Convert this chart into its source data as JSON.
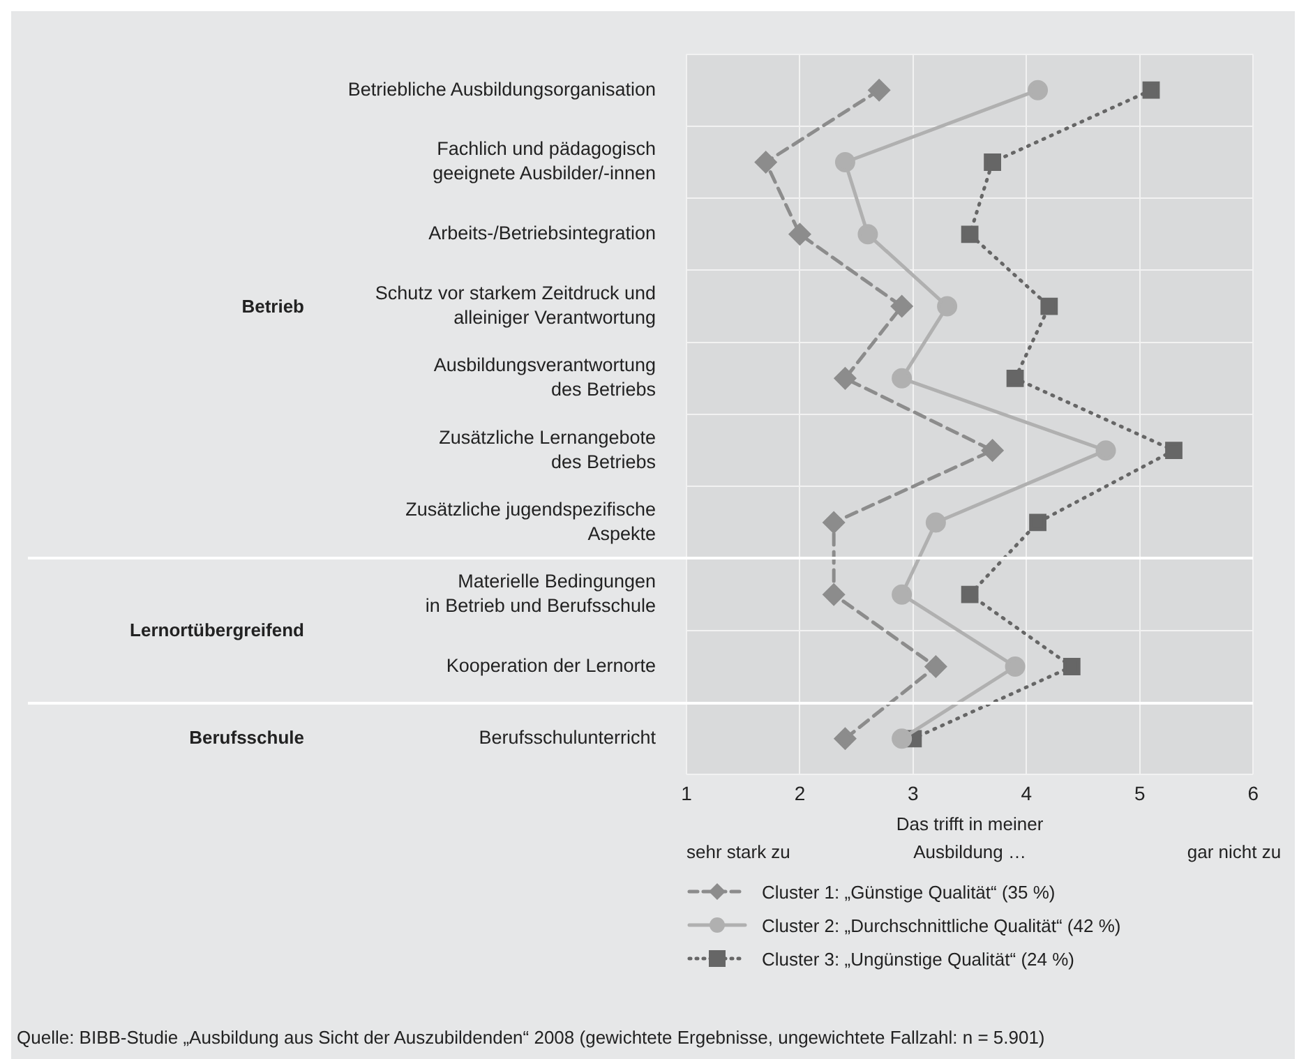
{
  "chart_data": {
    "type": "line",
    "categories": [
      "Betriebliche Ausbildungsorganisation",
      "Fachlich und pädagogisch\ngeeignete Ausbilder/-innen",
      "Arbeits-/Betriebsintegration",
      "Schutz vor starkem Zeitdruck und\nalleiniger Verantwortung",
      "Ausbildungsverantwortung\ndes Betriebs",
      "Zusätzliche Lernangebote\ndes Betriebs",
      "Zusätzliche jugendspezifische\nAspekte",
      "Materielle Bedingungen\nin Betrieb und Berufsschule",
      "Kooperation der Lernorte",
      "Berufsschulunterricht"
    ],
    "orientation": "horizontal",
    "series": [
      {
        "name": "Cluster 1: „Günstige Qualität“ (35 %)",
        "color": "#8c8c8c",
        "marker": "diamond",
        "line_style": "dashed",
        "values": [
          2.7,
          1.7,
          2.0,
          2.9,
          2.4,
          3.7,
          2.3,
          2.3,
          3.2,
          2.4
        ]
      },
      {
        "name": "Cluster 2: „Durchschnittliche Qualität“ (42 %)",
        "color": "#b0b0b0",
        "marker": "circle",
        "line_style": "solid",
        "values": [
          4.1,
          2.4,
          2.6,
          3.3,
          2.9,
          4.7,
          3.2,
          2.9,
          3.9,
          2.9
        ]
      },
      {
        "name": "Cluster 3: „Ungünstige Qualität“ (24 %)",
        "color": "#666666",
        "marker": "square",
        "line_style": "dotted",
        "values": [
          5.1,
          3.7,
          3.5,
          4.2,
          3.9,
          5.3,
          4.1,
          3.5,
          4.4,
          3.0
        ]
      }
    ],
    "xlim": [
      1,
      6
    ],
    "xticks": [
      1,
      2,
      3,
      4,
      5,
      6
    ],
    "xlabel": "Das trifft in meiner\nAusbildung …",
    "grid": true,
    "legend": "bottom",
    "annotations": [
      "Betrieb",
      "Lernortübergreifend",
      "Berufsschule",
      "sehr stark zu",
      "gar nicht zu",
      "Quelle: BIBB-Studie „Ausbildung aus Sicht der Auszubildenden“ 2008 (gewichtete Ergebnisse, ungewichtete Fallzahl: n = 5.901)"
    ]
  }
}
